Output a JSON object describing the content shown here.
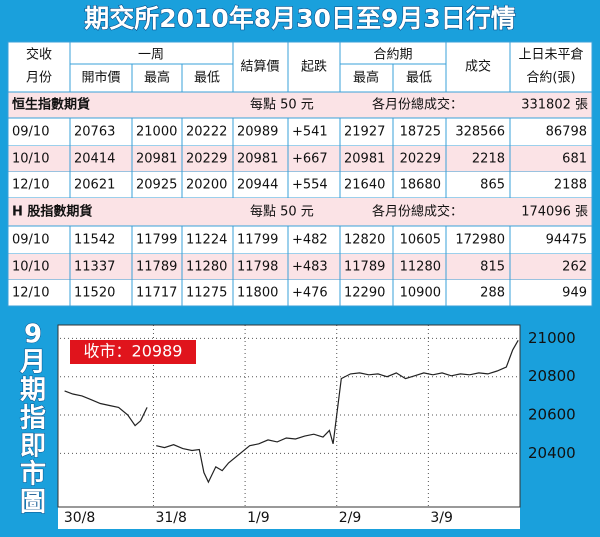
{
  "header": {
    "title": "期交所2010年8月30日至9月3日行情"
  },
  "table": {
    "headers": {
      "month": [
        "交收",
        "月份"
      ],
      "week": "一周",
      "open": "開市價",
      "high": "最高",
      "low": "最低",
      "settle": "結算價",
      "change": "起跌",
      "contract": "合約期",
      "contract_high": "最高",
      "contract_low": "最低",
      "volume": "成交",
      "open_interest": [
        "上日未平倉",
        "合約(張)"
      ]
    },
    "sections": [
      {
        "name": "恒生指數期貨",
        "point_value": "每點 50 元",
        "total_label": "各月份總成交：",
        "total": "331802 張",
        "rows": [
          [
            "09/10",
            "20763",
            "21000",
            "20222",
            "20989",
            "+541",
            "21927",
            "18725",
            "328566",
            "86798"
          ],
          [
            "10/10",
            "20414",
            "20981",
            "20229",
            "20981",
            "+667",
            "20981",
            "20229",
            "2218",
            "681"
          ],
          [
            "12/10",
            "20621",
            "20925",
            "20200",
            "20944",
            "+554",
            "21640",
            "18680",
            "865",
            "2188"
          ]
        ]
      },
      {
        "name": "H 股指數期貨",
        "point_value": "每點 50 元",
        "total_label": "各月份總成交：",
        "total": "174096 張",
        "rows": [
          [
            "09/10",
            "11542",
            "11799",
            "11224",
            "11799",
            "+482",
            "12820",
            "10605",
            "172980",
            "94475"
          ],
          [
            "10/10",
            "11337",
            "11789",
            "11280",
            "11798",
            "+483",
            "11789",
            "11280",
            "815",
            "262"
          ],
          [
            "12/10",
            "11520",
            "11717",
            "11275",
            "11800",
            "+476",
            "12290",
            "10900",
            "288",
            "949"
          ]
        ]
      }
    ]
  },
  "chart_data": {
    "type": "line",
    "title": "9月期指即市圖",
    "annotation": "收市：20989",
    "color": "#222222",
    "x": [
      0.03,
      0.12,
      0.22,
      0.32,
      0.42,
      0.52,
      0.62,
      0.72,
      0.8,
      0.86,
      0.93,
      0.98,
      1.03,
      1.12,
      1.22,
      1.32,
      1.42,
      1.5,
      1.55,
      1.6,
      1.68,
      1.75,
      1.82,
      2.05,
      2.15,
      2.25,
      2.35,
      2.45,
      2.55,
      2.65,
      2.75,
      2.85,
      2.92,
      2.96,
      3.05,
      3.15,
      3.25,
      3.35,
      3.45,
      3.55,
      3.65,
      3.75,
      3.85,
      3.95,
      4.05,
      4.15,
      4.25,
      4.35,
      4.45,
      4.55,
      4.65,
      4.75,
      4.85,
      4.92,
      4.98
    ],
    "values": [
      20726,
      20710,
      20700,
      20680,
      20660,
      20650,
      20640,
      20600,
      20545,
      20570,
      20640,
      null,
      20440,
      20430,
      20445,
      20425,
      20415,
      20420,
      20300,
      20250,
      20330,
      20310,
      20350,
      20440,
      20450,
      20470,
      20460,
      20480,
      20475,
      20490,
      20500,
      20485,
      20520,
      20450,
      20790,
      20815,
      20820,
      20810,
      20815,
      20800,
      20820,
      20790,
      20805,
      20820,
      20810,
      20820,
      20805,
      20815,
      20810,
      20820,
      20815,
      20830,
      20850,
      20940,
      20990
    ],
    "xlim": [
      -0.02,
      5
    ],
    "xticks": [
      {
        "value": 0,
        "label": "30/8"
      },
      {
        "value": 1,
        "label": "31/8"
      },
      {
        "value": 2,
        "label": "1/9"
      },
      {
        "value": 3,
        "label": "2/9"
      },
      {
        "value": 4,
        "label": "3/9"
      }
    ],
    "ylim": [
      20120,
      21070
    ],
    "yticks": [
      21000,
      20800,
      20600,
      20400
    ],
    "grid": true
  }
}
